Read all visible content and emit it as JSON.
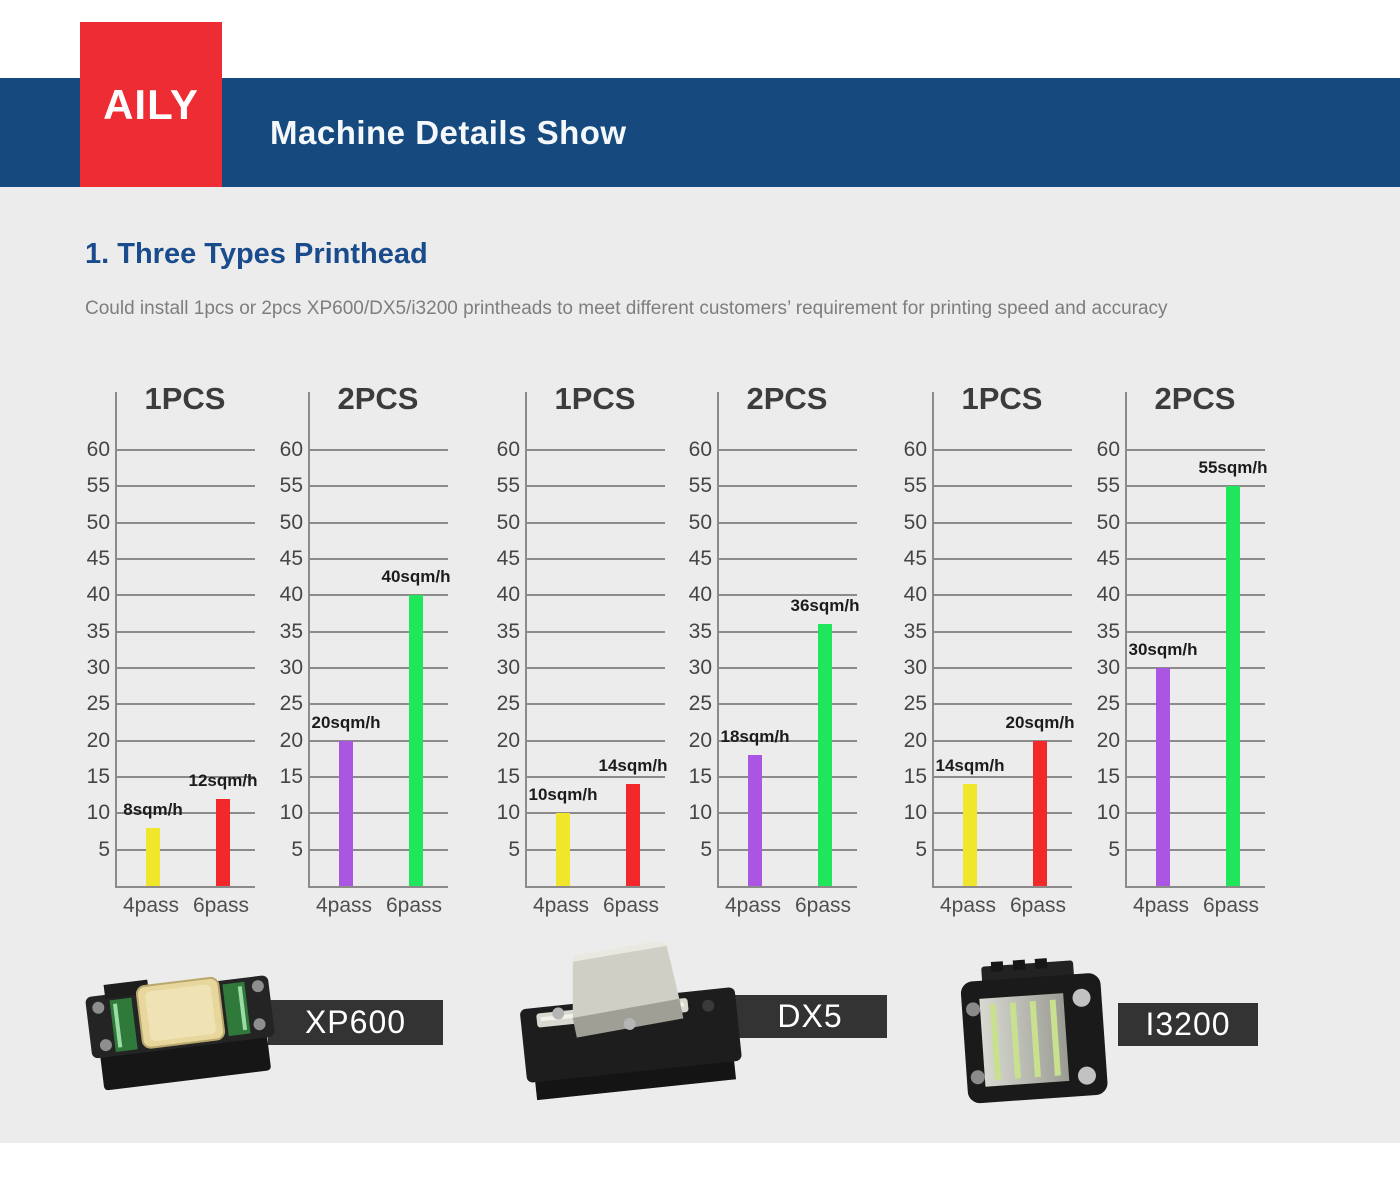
{
  "header": {
    "logo": "AILY",
    "title": "Machine Details Show",
    "banner_color": "#16497e",
    "logo_color": "#ee2c34"
  },
  "section": {
    "title": "1. Three Types Printhead",
    "description": "Could install 1pcs or 2pcs XP600/DX5/i3200 printheads to meet different customers’ requirement for printing speed and accuracy"
  },
  "chart_data": [
    {
      "type": "bar",
      "group": "XP600",
      "title": "1PCS",
      "categories": [
        "4pass",
        "6pass"
      ],
      "values": [
        8,
        12
      ],
      "labels": [
        "8sqm/h",
        "12sqm/h"
      ],
      "bar_colors": [
        "#f0e62c",
        "#f3282b"
      ],
      "ylabel": "",
      "ylim": [
        0,
        60
      ],
      "yticks": [
        5,
        10,
        15,
        20,
        25,
        30,
        35,
        40,
        45,
        50,
        55,
        60
      ],
      "grid": true,
      "legend": "none"
    },
    {
      "type": "bar",
      "group": "XP600",
      "title": "2PCS",
      "categories": [
        "4pass",
        "6pass"
      ],
      "values": [
        20,
        40
      ],
      "labels": [
        "20sqm/h",
        "40sqm/h"
      ],
      "bar_colors": [
        "#ab55e3",
        "#1fe65b"
      ],
      "ylabel": "",
      "ylim": [
        0,
        60
      ],
      "yticks": [
        5,
        10,
        15,
        20,
        25,
        30,
        35,
        40,
        45,
        50,
        55,
        60
      ],
      "grid": true,
      "legend": "none"
    },
    {
      "type": "bar",
      "group": "DX5",
      "title": "1PCS",
      "categories": [
        "4pass",
        "6pass"
      ],
      "values": [
        10,
        14
      ],
      "labels": [
        "10sqm/h",
        "14sqm/h"
      ],
      "bar_colors": [
        "#f0e62c",
        "#f3282b"
      ],
      "ylabel": "",
      "ylim": [
        0,
        60
      ],
      "yticks": [
        5,
        10,
        15,
        20,
        25,
        30,
        35,
        40,
        45,
        50,
        55,
        60
      ],
      "grid": true,
      "legend": "none"
    },
    {
      "type": "bar",
      "group": "DX5",
      "title": "2PCS",
      "categories": [
        "4pass",
        "6pass"
      ],
      "values": [
        18,
        36
      ],
      "labels": [
        "18sqm/h",
        "36sqm/h"
      ],
      "bar_colors": [
        "#ab55e3",
        "#1fe65b"
      ],
      "ylabel": "",
      "ylim": [
        0,
        60
      ],
      "yticks": [
        5,
        10,
        15,
        20,
        25,
        30,
        35,
        40,
        45,
        50,
        55,
        60
      ],
      "grid": true,
      "legend": "none"
    },
    {
      "type": "bar",
      "group": "I3200",
      "title": "1PCS",
      "categories": [
        "4pass",
        "6pass"
      ],
      "values": [
        14,
        20
      ],
      "labels": [
        "14sqm/h",
        "20sqm/h"
      ],
      "bar_colors": [
        "#f0e62c",
        "#f3282b"
      ],
      "ylabel": "",
      "ylim": [
        0,
        60
      ],
      "yticks": [
        5,
        10,
        15,
        20,
        25,
        30,
        35,
        40,
        45,
        50,
        55,
        60
      ],
      "grid": true,
      "legend": "none"
    },
    {
      "type": "bar",
      "group": "I3200",
      "title": "2PCS",
      "categories": [
        "4pass",
        "6pass"
      ],
      "values": [
        30,
        55
      ],
      "labels": [
        "30sqm/h",
        "55sqm/h"
      ],
      "bar_colors": [
        "#ab55e3",
        "#1fe65b"
      ],
      "ylabel": "",
      "ylim": [
        0,
        60
      ],
      "yticks": [
        5,
        10,
        15,
        20,
        25,
        30,
        35,
        40,
        45,
        50,
        55,
        60
      ],
      "grid": true,
      "legend": "none"
    }
  ],
  "products": [
    {
      "name": "XP600"
    },
    {
      "name": "DX5"
    },
    {
      "name": "I3200"
    }
  ],
  "colors": {
    "background_panel": "#ececec",
    "gridline": "#8b8b8b",
    "tag_background": "#333333",
    "section_title": "#1a4b8c"
  }
}
